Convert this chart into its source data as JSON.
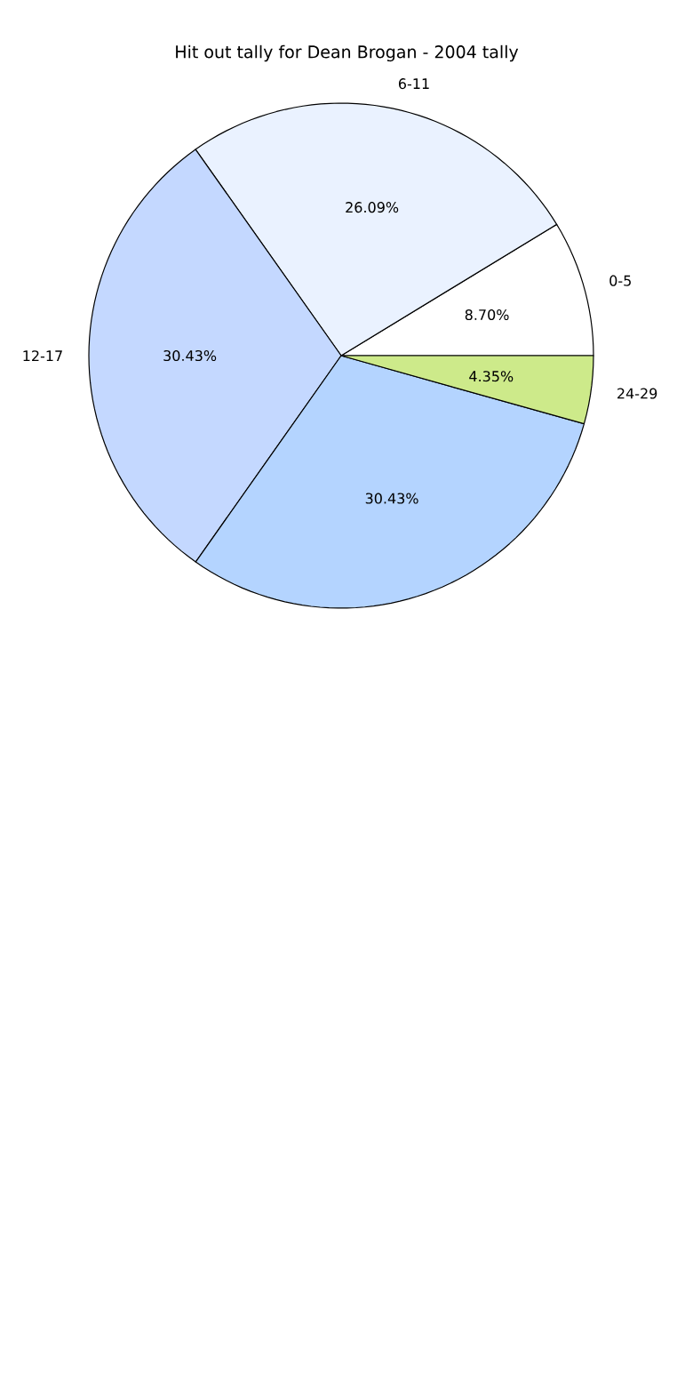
{
  "chart_data": {
    "type": "pie",
    "title": "Hit out tally for Dean Brogan - 2004 tally",
    "categories": [
      "0-5",
      "6-11",
      "12-17",
      null,
      "24-29"
    ],
    "values": [
      8.7,
      26.09,
      30.43,
      30.43,
      4.35
    ],
    "value_labels": [
      "8.70%",
      "26.09%",
      "30.43%",
      "30.43%",
      "4.35%"
    ],
    "colors": [
      "#ffffff",
      "#eaf2ff",
      "#c4d8ff",
      "#b4d4ff",
      "#cdea8a"
    ]
  }
}
